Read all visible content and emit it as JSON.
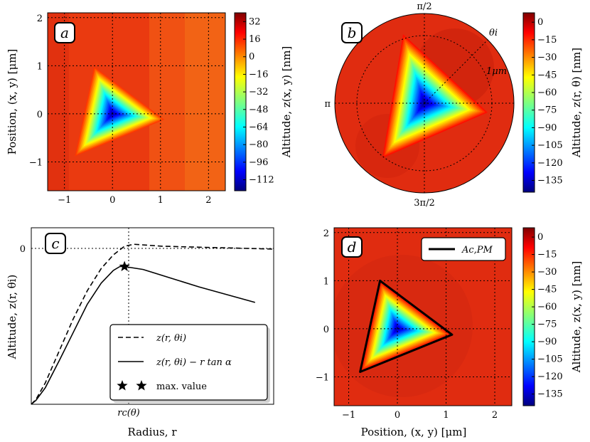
{
  "chart_data": [
    {
      "id": "a",
      "type": "heatmap",
      "badge": "a",
      "xticks": [
        "−1",
        "0",
        "1",
        "2"
      ],
      "yticks": [
        "−1",
        "0",
        "1",
        "2"
      ],
      "xlim": [
        -1.35,
        2.35
      ],
      "ylim": [
        -1.6,
        2.1
      ],
      "xticks_values": [
        -1,
        0,
        1,
        2
      ],
      "yticks_values": [
        -1,
        0,
        1,
        2
      ],
      "ylabel": "Position, (x, y) [μm]",
      "colorbar": {
        "label": "Altitude, z(x, y) [nm]",
        "ticks": [
          "32",
          "16",
          "0",
          "−16",
          "−32",
          "−48",
          "−64",
          "−80",
          "−96",
          "−112"
        ],
        "tick_values": [
          32,
          16,
          0,
          -16,
          -32,
          -48,
          -64,
          -80,
          -96,
          -112
        ],
        "range": [
          -122,
          40
        ]
      },
      "triangle_vertices": [
        [
          -0.38,
          0.98
        ],
        [
          1.08,
          -0.12
        ],
        [
          -0.78,
          -0.88
        ]
      ],
      "minimum": {
        "x": 0,
        "y": 0,
        "z": -115
      }
    },
    {
      "id": "b",
      "type": "heatmap",
      "badge": "b",
      "polar": true,
      "angle_labels": {
        "top": "π/2",
        "left": "π",
        "bottom": "3π/2"
      },
      "theta_label": "θi",
      "radius_label": "1μm",
      "colorbar": {
        "label": "Altitude, z(r, θ) [nm]",
        "ticks": [
          "0",
          "−15",
          "−30",
          "−45",
          "−60",
          "−75",
          "−90",
          "−105",
          "−120",
          "−135"
        ],
        "tick_values": [
          0,
          -15,
          -30,
          -45,
          -60,
          -75,
          -90,
          -105,
          -120,
          -135
        ],
        "range": [
          -145,
          8
        ]
      }
    },
    {
      "id": "c",
      "type": "line",
      "badge": "c",
      "xlabel": "Radius, r",
      "ylabel": "Altitude, z(r, θi)",
      "xtick_label": "rc(θ)",
      "xtick_value": 1,
      "ytick_label": "0",
      "ytick_value": 0,
      "xlim": [
        0,
        2.6
      ],
      "ylim": [
        -1.6,
        0.22
      ],
      "series": [
        {
          "name": "z(r, θi)",
          "style": "dashed",
          "x": [
            0,
            0.05,
            0.15,
            0.3,
            0.45,
            0.6,
            0.75,
            0.88,
            0.96,
            1.0,
            1.1,
            1.4,
            1.8,
            2.2,
            2.6
          ],
          "y": [
            -1.6,
            -1.55,
            -1.38,
            -1.05,
            -0.72,
            -0.43,
            -0.2,
            -0.06,
            0.0,
            0.03,
            0.05,
            0.03,
            0.02,
            0.01,
            0.0
          ]
        },
        {
          "name": "z(r, θi) − r tan α",
          "style": "solid",
          "x": [
            0,
            0.05,
            0.15,
            0.3,
            0.45,
            0.6,
            0.75,
            0.88,
            0.95,
            1.0,
            1.2,
            1.5,
            1.8,
            2.1,
            2.4
          ],
          "y": [
            -1.6,
            -1.56,
            -1.43,
            -1.15,
            -0.86,
            -0.57,
            -0.35,
            -0.22,
            -0.18,
            -0.18,
            -0.21,
            -0.3,
            -0.39,
            -0.47,
            -0.55
          ]
        }
      ],
      "max_marker": {
        "x": 1.0,
        "y": -0.18,
        "label": "max. value"
      },
      "legend": [
        "z(r, θi)",
        "z(r, θi) − r tan α",
        "max. value"
      ]
    },
    {
      "id": "d",
      "type": "heatmap",
      "badge": "d",
      "xticks": [
        "−1",
        "0",
        "1",
        "2"
      ],
      "yticks": [
        "−1",
        "0",
        "1",
        "2"
      ],
      "xlim": [
        -1.3,
        2.35
      ],
      "ylim": [
        -1.6,
        2.1
      ],
      "xticks_values": [
        -1,
        0,
        1,
        2
      ],
      "yticks_values": [
        -1,
        0,
        1,
        2
      ],
      "xlabel": "Position, (x, y) [μm]",
      "legend": "Ac,PM",
      "colorbar": {
        "label": "Altitude, z(x, y) [nm]",
        "ticks": [
          "0",
          "−15",
          "−30",
          "−45",
          "−60",
          "−75",
          "−90",
          "−105",
          "−120",
          "−135"
        ],
        "tick_values": [
          0,
          -15,
          -30,
          -45,
          -60,
          -75,
          -90,
          -105,
          -120,
          -135
        ],
        "range": [
          -145,
          8
        ]
      },
      "contour_vertices": [
        [
          -0.35,
          0.98
        ],
        [
          1.1,
          -0.12
        ],
        [
          -0.75,
          -0.88
        ]
      ],
      "minimum": {
        "x": 0,
        "y": 0,
        "z": -138
      }
    }
  ]
}
